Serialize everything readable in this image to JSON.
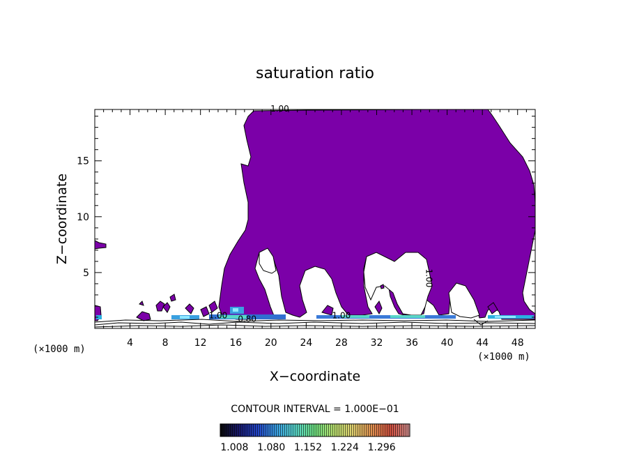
{
  "chart_data": {
    "type": "heatmap",
    "title": "saturation ratio",
    "xlabel": "X−coordinate",
    "ylabel": "Z−coordinate",
    "x_unit": "(×1000 m)",
    "z_unit": "(×1000 m)",
    "xlim": [
      0,
      50
    ],
    "ylim": [
      0,
      19.6
    ],
    "x_ticks": [
      4,
      8,
      12,
      16,
      20,
      24,
      28,
      32,
      36,
      40,
      44,
      48
    ],
    "y_ticks": [
      5,
      10,
      15
    ],
    "contour_interval_text": "CONTOUR INTERVAL = 1.000E−01",
    "contour_labels": [
      {
        "text": "1.00",
        "x": 21.0,
        "z": 19.4
      },
      {
        "text": "1.00",
        "x": 37.6,
        "z": 4.5
      },
      {
        "text": "1.00",
        "x": 14.0,
        "z": 0.9
      },
      {
        "text": "0.80",
        "x": 17.3,
        "z": 0.6
      },
      {
        "text": "1.00",
        "x": 28.0,
        "z": 0.9
      }
    ],
    "colorbar": {
      "tick_labels": [
        "1.008",
        "1.080",
        "1.152",
        "1.224",
        "1.296"
      ],
      "colors": [
        "#0a0a0a",
        "#1a1a6e",
        "#2346c8",
        "#3aa0e0",
        "#59d6c8",
        "#6ee080",
        "#b8e070",
        "#e0d070",
        "#e09050",
        "#d05040",
        "#d09090"
      ]
    },
    "fill_color": "#7b00a8",
    "background_color": "#ffffff"
  }
}
